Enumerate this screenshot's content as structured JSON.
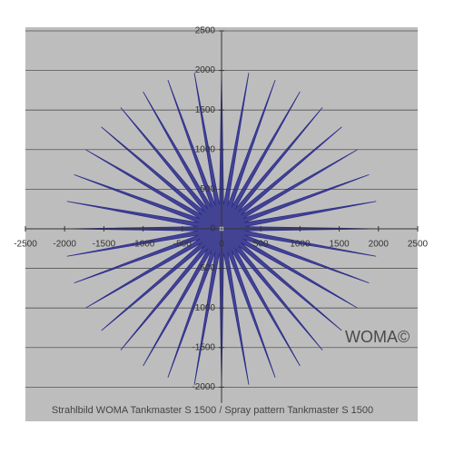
{
  "chart_data": {
    "type": "line",
    "caption": "Strahlbild WOMA Tankmaster S 1500 / Spray pattern Tankmaster S 1500",
    "annotation": "WOMA©",
    "xlim": [
      -2500,
      2500
    ],
    "ylim": [
      -2200,
      2500
    ],
    "xticks": [
      -2500,
      -2000,
      -1500,
      -1000,
      -500,
      0,
      500,
      1000,
      1500,
      2000,
      2500
    ],
    "yticks": [
      -2000,
      -1500,
      -1000,
      -500,
      0,
      500,
      1000,
      1500,
      2000,
      2500
    ],
    "grid": true,
    "series": [
      {
        "color": "#2e2e8c",
        "x": [
          2000,
          299,
          1970,
          290,
          1879,
          272,
          1732,
          246,
          1532,
          212,
          1286,
          172,
          1000,
          127,
          684,
          78,
          347,
          26,
          0,
          -26,
          -347,
          -78,
          -684,
          -127,
          -1000,
          -172,
          -1286,
          -212,
          -1532,
          -246,
          -1732,
          -272,
          -1879,
          -290,
          -1970,
          -299,
          -2000,
          -299,
          -1970,
          -290,
          -1879,
          -272,
          -1732,
          -246,
          -1532,
          -212,
          -1286,
          -172,
          -1000,
          -127,
          -684,
          -78,
          -347,
          -26,
          0,
          26,
          347,
          78,
          684,
          127,
          1000,
          172,
          1286,
          212,
          1532,
          246,
          1732,
          272,
          1879,
          290,
          1970,
          299,
          2000
        ],
        "values": [
          0,
          26,
          347,
          78,
          684,
          127,
          1000,
          172,
          1286,
          212,
          1532,
          246,
          1732,
          272,
          1879,
          290,
          1970,
          299,
          2000,
          299,
          1970,
          290,
          1879,
          272,
          1732,
          246,
          1532,
          212,
          1286,
          172,
          1000,
          127,
          684,
          78,
          347,
          26,
          0,
          -26,
          -347,
          -78,
          -684,
          -127,
          -1000,
          -172,
          -1286,
          -212,
          -1532,
          -246,
          -1732,
          -272,
          -1879,
          -290,
          -1970,
          -299,
          -2000,
          -299,
          -1970,
          -290,
          -1879,
          -272,
          -1732,
          -246,
          -1532,
          -212,
          -1286,
          -172,
          -1000,
          -127,
          -684,
          -78,
          -347,
          -26,
          0
        ]
      }
    ]
  }
}
